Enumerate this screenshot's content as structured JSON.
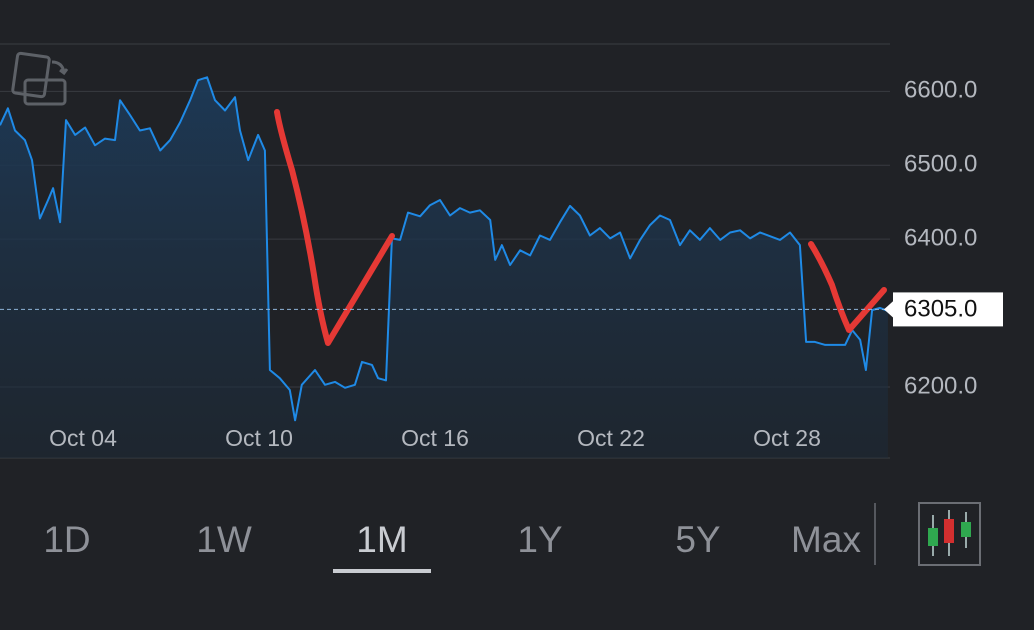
{
  "chart_data": {
    "type": "area",
    "color": "#1f8ae6",
    "x": [
      1.17,
      1.44,
      1.68,
      2.02,
      2.26,
      2.53,
      2.81,
      2.98,
      3.22,
      3.42,
      3.73,
      4.07,
      4.41,
      4.75,
      5.09,
      5.26,
      5.6,
      5.94,
      6.28,
      6.63,
      6.97,
      7.31,
      7.65,
      7.92,
      8.23,
      8.5,
      8.84,
      9.18,
      9.35,
      9.63,
      9.97,
      10.2,
      10.37,
      10.71,
      11.05,
      11.23,
      11.46,
      11.91,
      12.25,
      12.59,
      12.93,
      13.27,
      13.51,
      13.85,
      14.06,
      14.33,
      14.53,
      14.81,
      15.08,
      15.49,
      15.83,
      16.17,
      16.51,
      16.85,
      17.19,
      17.53,
      17.88,
      18.05,
      18.28,
      18.56,
      18.9,
      19.24,
      19.58,
      19.92,
      20.26,
      20.6,
      20.94,
      21.28,
      21.62,
      21.97,
      22.31,
      22.65,
      22.99,
      23.33,
      23.67,
      24.01,
      24.35,
      24.69,
      25.03,
      25.37,
      25.72,
      26.06,
      26.4,
      26.74,
      27.08,
      27.42,
      27.76,
      28.1,
      28.44,
      28.65,
      28.95,
      29.3,
      29.64,
      29.98,
      30.22,
      30.49,
      30.69,
      30.9,
      31.17,
      31.44
    ],
    "values": [
      6554,
      6577,
      6547,
      6534,
      6507,
      6428,
      6453,
      6469,
      6423,
      6561,
      6541,
      6551,
      6527,
      6536,
      6534,
      6588,
      6568,
      6547,
      6550,
      6520,
      6534,
      6558,
      6588,
      6615,
      6619,
      6588,
      6574,
      6592,
      6547,
      6507,
      6541,
      6520,
      6223,
      6212,
      6196,
      6155,
      6203,
      6223,
      6203,
      6207,
      6199,
      6203,
      6234,
      6230,
      6212,
      6209,
      6401,
      6399,
      6436,
      6431,
      6446,
      6453,
      6432,
      6442,
      6436,
      6439,
      6426,
      6372,
      6392,
      6365,
      6385,
      6378,
      6405,
      6399,
      6423,
      6445,
      6432,
      6405,
      6415,
      6401,
      6409,
      6374,
      6399,
      6419,
      6432,
      6426,
      6392,
      6412,
      6399,
      6415,
      6399,
      6409,
      6412,
      6401,
      6409,
      6404,
      6399,
      6409,
      6392,
      6261,
      6261,
      6257,
      6257,
      6257,
      6277,
      6264,
      6223,
      6304,
      6307,
      6303
    ],
    "xlim": [
      1.17,
      31.51
    ],
    "xticks": [
      {
        "value": 4,
        "label": "Oct 04"
      },
      {
        "value": 10,
        "label": "Oct 10"
      },
      {
        "value": 16,
        "label": "Oct 16"
      },
      {
        "value": 22,
        "label": "Oct 22"
      },
      {
        "value": 28,
        "label": "Oct 28"
      }
    ],
    "ylim": [
      6104,
      6664
    ],
    "yticks": [
      {
        "value": 6200,
        "label": "6200.0"
      },
      {
        "value": 6400,
        "label": "6400.0"
      },
      {
        "value": 6500,
        "label": "6500.0"
      },
      {
        "value": 6600,
        "label": "6600.0"
      }
    ],
    "grid": true,
    "last_price": {
      "value": 6305,
      "label": "6305.0"
    }
  },
  "range_buttons": {
    "items": [
      "1D",
      "1W",
      "1M",
      "1Y",
      "5Y",
      "Max"
    ],
    "selected": "1M"
  }
}
